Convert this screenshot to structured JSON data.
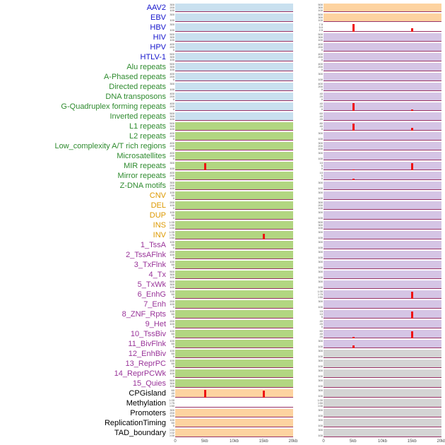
{
  "chart_data": {
    "type": "line",
    "layout": "multi-track-two-column-genomic-feature-plot",
    "x_axis": {
      "ticks": [
        "0",
        "5kb",
        "10kb",
        "15kb",
        "20kb"
      ],
      "range_kb": [
        0,
        20
      ]
    },
    "label_colors": {
      "virus": "#1414cc",
      "repeats": "#2e8b2e",
      "sv": "#dd9900",
      "chromhmm": "#993399",
      "other": "#000000"
    },
    "panel_colors": {
      "blue": "#c9e0ef",
      "green": "#b2d681",
      "orange": "#fdd3a0",
      "purple": "#d5c5e5",
      "gray": "#d4d4d4",
      "white": "#ffffff"
    },
    "baseline_color": "#993366",
    "spike_color": "#ee1111",
    "axis_text_color": "#4d4d4d",
    "rows": [
      {
        "label": "AAV2",
        "group": "virus",
        "left": {
          "bg": "blue",
          "yticks": [
            "300",
            "200",
            "100"
          ],
          "spikes": []
        },
        "right": {
          "bg": "orange",
          "yticks": [
            "500",
            "300",
            "100"
          ],
          "spikes": []
        }
      },
      {
        "label": "EBV",
        "group": "virus",
        "left": {
          "bg": "blue",
          "yticks": [
            "300",
            "100"
          ],
          "spikes": []
        },
        "right": {
          "bg": "orange",
          "yticks": [
            "500",
            "300",
            "100"
          ],
          "spikes": []
        }
      },
      {
        "label": "HBV",
        "group": "virus",
        "left": {
          "bg": "blue",
          "yticks": [
            "300",
            "100"
          ],
          "spikes": []
        },
        "right": {
          "bg": "white",
          "yticks": [
            "7.5",
            "5.0",
            "2.5",
            "0.0"
          ],
          "spikes": [
            {
              "x_kb": 5,
              "h": 0.95
            },
            {
              "x_kb": 15,
              "h": 0.4
            }
          ]
        }
      },
      {
        "label": "HIV",
        "group": "virus",
        "left": {
          "bg": "blue",
          "yticks": [
            "500",
            "300",
            "100"
          ],
          "spikes": []
        },
        "right": {
          "bg": "purple",
          "yticks": [
            "500",
            "300",
            "100"
          ],
          "spikes": []
        }
      },
      {
        "label": "HPV",
        "group": "virus",
        "left": {
          "bg": "blue",
          "yticks": [
            "400",
            "200",
            "0"
          ],
          "spikes": []
        },
        "right": {
          "bg": "purple",
          "yticks": [
            "400",
            "200",
            "0"
          ],
          "spikes": []
        }
      },
      {
        "label": "HTLV-1",
        "group": "virus",
        "left": {
          "bg": "blue",
          "yticks": [
            "500",
            "300",
            "100"
          ],
          "spikes": []
        },
        "right": {
          "bg": "purple",
          "yticks": [
            "400",
            "200",
            "0"
          ],
          "spikes": []
        }
      },
      {
        "label": "Alu repeats",
        "group": "repeats",
        "left": {
          "bg": "blue",
          "yticks": [
            "500",
            "300",
            "100"
          ],
          "spikes": []
        },
        "right": {
          "bg": "purple",
          "yticks": [
            "400",
            "200",
            "0"
          ],
          "spikes": []
        }
      },
      {
        "label": "A-Phased repeats",
        "group": "repeats",
        "left": {
          "bg": "blue",
          "yticks": [
            "400",
            "200",
            "0"
          ],
          "spikes": []
        },
        "right": {
          "bg": "purple",
          "yticks": [
            "300",
            "100"
          ],
          "spikes": []
        }
      },
      {
        "label": "Directed repeats",
        "group": "repeats",
        "left": {
          "bg": "blue",
          "yticks": [
            "300",
            "100"
          ],
          "spikes": []
        },
        "right": {
          "bg": "purple",
          "yticks": [
            "400",
            "200",
            "0"
          ],
          "spikes": []
        }
      },
      {
        "label": "DNA transposons",
        "group": "repeats",
        "left": {
          "bg": "blue",
          "yticks": [
            "400",
            "200",
            "0"
          ],
          "spikes": []
        },
        "right": {
          "bg": "purple",
          "yticks": [
            "40",
            "20",
            "0"
          ],
          "spikes": []
        }
      },
      {
        "label": "G-Quadruplex forming repeats",
        "group": "repeats",
        "left": {
          "bg": "blue",
          "yticks": [
            "400",
            "200",
            "0"
          ],
          "spikes": []
        },
        "right": {
          "bg": "purple",
          "yticks": [
            "40",
            "20",
            "0"
          ],
          "spikes": [
            {
              "x_kb": 5,
              "h": 0.9
            },
            {
              "x_kb": 15,
              "h": 0.15
            }
          ]
        }
      },
      {
        "label": "Inverted repeats",
        "group": "repeats",
        "left": {
          "bg": "blue",
          "yticks": [
            "500",
            "300",
            "100"
          ],
          "spikes": []
        },
        "right": {
          "bg": "purple",
          "yticks": [
            "60",
            "40",
            "20"
          ],
          "spikes": []
        }
      },
      {
        "label": "L1 repeats",
        "group": "repeats",
        "left": {
          "bg": "green",
          "yticks": [
            "500",
            "300",
            "100"
          ],
          "spikes": []
        },
        "right": {
          "bg": "purple",
          "yticks": [
            "80",
            "40",
            "0"
          ],
          "spikes": [
            {
              "x_kb": 5,
              "h": 0.85
            },
            {
              "x_kb": 15,
              "h": 0.35
            }
          ]
        }
      },
      {
        "label": "L2 repeats",
        "group": "repeats",
        "left": {
          "bg": "green",
          "yticks": [
            "400",
            "200",
            "0"
          ],
          "spikes": []
        },
        "right": {
          "bg": "purple",
          "yticks": [
            "300",
            "100"
          ],
          "spikes": []
        }
      },
      {
        "label": "Low_complexity A/T rich regions",
        "group": "repeats",
        "left": {
          "bg": "green",
          "yticks": [
            "400",
            "200",
            "0"
          ],
          "spikes": []
        },
        "right": {
          "bg": "purple",
          "yticks": [
            "300",
            "200",
            "100"
          ],
          "spikes": []
        }
      },
      {
        "label": "Microsatellites",
        "group": "repeats",
        "left": {
          "bg": "green",
          "yticks": [
            "400",
            "200",
            "0"
          ],
          "spikes": []
        },
        "right": {
          "bg": "purple",
          "yticks": [
            "300",
            "100"
          ],
          "spikes": []
        }
      },
      {
        "label": "MIR repeats",
        "group": "repeats",
        "left": {
          "bg": "green",
          "yticks": [
            "300",
            "100"
          ],
          "spikes": [
            {
              "x_kb": 5,
              "h": 0.85
            }
          ]
        },
        "right": {
          "bg": "purple",
          "yticks": [
            "10",
            "5",
            "0"
          ],
          "spikes": [
            {
              "x_kb": 15,
              "h": 0.85
            },
            {
              "x_kb": 5,
              "h": 0.12
            }
          ]
        }
      },
      {
        "label": "Mirror repeats",
        "group": "repeats",
        "left": {
          "bg": "green",
          "yticks": [
            "400",
            "200",
            "0"
          ],
          "spikes": []
        },
        "right": {
          "bg": "purple",
          "yticks": [
            "10",
            "5",
            "0"
          ],
          "spikes": [
            {
              "x_kb": 5,
              "h": 0.15
            }
          ]
        }
      },
      {
        "label": "Z-DNA motifs",
        "group": "repeats",
        "left": {
          "bg": "green",
          "yticks": [
            "300",
            "200",
            "100"
          ],
          "spikes": []
        },
        "right": {
          "bg": "purple",
          "yticks": [
            "300",
            "100"
          ],
          "spikes": []
        }
      },
      {
        "label": "CNV",
        "group": "sv",
        "left": {
          "bg": "green",
          "yticks": [
            "100",
            "50",
            "0"
          ],
          "spikes": []
        },
        "right": {
          "bg": "purple",
          "yticks": [
            "300",
            "100"
          ],
          "spikes": []
        }
      },
      {
        "label": "DEL",
        "group": "sv",
        "left": {
          "bg": "green",
          "yticks": [
            "200",
            "100",
            "0"
          ],
          "spikes": []
        },
        "right": {
          "bg": "purple",
          "yticks": [
            "300",
            "200",
            "100"
          ],
          "spikes": []
        }
      },
      {
        "label": "DUP",
        "group": "sv",
        "left": {
          "bg": "green",
          "yticks": [
            "100",
            "50",
            "0"
          ],
          "spikes": []
        },
        "right": {
          "bg": "purple",
          "yticks": [
            "300",
            "100"
          ],
          "spikes": []
        }
      },
      {
        "label": "INS",
        "group": "sv",
        "left": {
          "bg": "green",
          "yticks": [
            "1.00",
            "0.50",
            "0.00"
          ],
          "spikes": []
        },
        "right": {
          "bg": "purple",
          "yticks": [
            "500",
            "300",
            "100"
          ],
          "spikes": []
        }
      },
      {
        "label": "INV",
        "group": "sv",
        "left": {
          "bg": "green",
          "yticks": [
            "1.00",
            "0.75",
            "0.50",
            "0.25",
            "0.00"
          ],
          "spikes": [
            {
              "x_kb": 15,
              "h": 0.7
            }
          ]
        },
        "right": {
          "bg": "purple",
          "yticks": [
            "300",
            "100"
          ],
          "spikes": []
        }
      },
      {
        "label": "1_TssA",
        "group": "chromhmm",
        "left": {
          "bg": "green",
          "yticks": [
            "100",
            "50",
            "0"
          ],
          "spikes": []
        },
        "right": {
          "bg": "purple",
          "yticks": [
            "300",
            "100"
          ],
          "spikes": []
        }
      },
      {
        "label": "2_TssAFlnk",
        "group": "chromhmm",
        "left": {
          "bg": "green",
          "yticks": [
            "200",
            "100",
            "0"
          ],
          "spikes": []
        },
        "right": {
          "bg": "purple",
          "yticks": [
            "300",
            "100"
          ],
          "spikes": []
        }
      },
      {
        "label": "3_TxFlnk",
        "group": "chromhmm",
        "left": {
          "bg": "green",
          "yticks": [
            "100",
            "50",
            "0"
          ],
          "spikes": []
        },
        "right": {
          "bg": "purple",
          "yticks": [
            "300",
            "100"
          ],
          "spikes": []
        }
      },
      {
        "label": "4_Tx",
        "group": "chromhmm",
        "left": {
          "bg": "green",
          "yticks": [
            "500",
            "300",
            "100"
          ],
          "spikes": []
        },
        "right": {
          "bg": "purple",
          "yticks": [
            "300",
            "100"
          ],
          "spikes": []
        }
      },
      {
        "label": "5_TxWk",
        "group": "chromhmm",
        "left": {
          "bg": "green",
          "yticks": [
            "500",
            "300",
            "100"
          ],
          "spikes": []
        },
        "right": {
          "bg": "purple",
          "yticks": [
            "300",
            "100"
          ],
          "spikes": []
        }
      },
      {
        "label": "6_EnhG",
        "group": "chromhmm",
        "left": {
          "bg": "green",
          "yticks": [
            "100",
            "50",
            "0"
          ],
          "spikes": []
        },
        "right": {
          "bg": "purple",
          "yticks": [
            "1.00",
            "0.75",
            "0.50",
            "0.25",
            "0.00"
          ],
          "spikes": [
            {
              "x_kb": 15,
              "h": 0.8
            }
          ]
        }
      },
      {
        "label": "7_Enh",
        "group": "chromhmm",
        "left": {
          "bg": "green",
          "yticks": [
            "200",
            "100",
            "0"
          ],
          "spikes": []
        },
        "right": {
          "bg": "purple",
          "yticks": [
            "300",
            "100"
          ],
          "spikes": []
        }
      },
      {
        "label": "8_ZNF_Rpts",
        "group": "chromhmm",
        "left": {
          "bg": "green",
          "yticks": [
            "100",
            "50",
            "0"
          ],
          "spikes": []
        },
        "right": {
          "bg": "purple",
          "yticks": [
            "15",
            "10",
            "5",
            "0"
          ],
          "spikes": [
            {
              "x_kb": 15,
              "h": 0.85
            }
          ]
        }
      },
      {
        "label": "9_Het",
        "group": "chromhmm",
        "left": {
          "bg": "green",
          "yticks": [
            "200",
            "100",
            "0"
          ],
          "spikes": []
        },
        "right": {
          "bg": "purple",
          "yticks": [
            "40",
            "20",
            "0"
          ],
          "spikes": []
        }
      },
      {
        "label": "10_TssBiv",
        "group": "chromhmm",
        "left": {
          "bg": "green",
          "yticks": [
            "100",
            "50",
            "0"
          ],
          "spikes": []
        },
        "right": {
          "bg": "purple",
          "yticks": [
            "60",
            "40",
            "20"
          ],
          "spikes": [
            {
              "x_kb": 15,
              "h": 0.8
            },
            {
              "x_kb": 5,
              "h": 0.15
            }
          ]
        }
      },
      {
        "label": "11_BivFlnk",
        "group": "chromhmm",
        "left": {
          "bg": "green",
          "yticks": [
            "100",
            "50",
            "0"
          ],
          "spikes": []
        },
        "right": {
          "bg": "purple",
          "yticks": [
            "300",
            "100"
          ],
          "spikes": [
            {
              "x_kb": 5,
              "h": 0.3
            }
          ]
        }
      },
      {
        "label": "12_EnhBiv",
        "group": "chromhmm",
        "left": {
          "bg": "green",
          "yticks": [
            "100",
            "50",
            "0"
          ],
          "spikes": []
        },
        "right": {
          "bg": "gray",
          "yticks": [
            "300",
            "100"
          ],
          "spikes": []
        }
      },
      {
        "label": "13_ReprPC",
        "group": "chromhmm",
        "left": {
          "bg": "green",
          "yticks": [
            "100",
            "50",
            "0"
          ],
          "spikes": []
        },
        "right": {
          "bg": "gray",
          "yticks": [
            "300",
            "100"
          ],
          "spikes": []
        }
      },
      {
        "label": "14_ReprPCWk",
        "group": "chromhmm",
        "left": {
          "bg": "green",
          "yticks": [
            "200",
            "100",
            "0"
          ],
          "spikes": []
        },
        "right": {
          "bg": "gray",
          "yticks": [
            "300",
            "100"
          ],
          "spikes": []
        }
      },
      {
        "label": "15_Quies",
        "group": "chromhmm",
        "left": {
          "bg": "green",
          "yticks": [
            "500",
            "300",
            "100"
          ],
          "spikes": []
        },
        "right": {
          "bg": "gray",
          "yticks": [
            "300",
            "100"
          ],
          "spikes": []
        }
      },
      {
        "label": "CPGisland",
        "group": "other",
        "left": {
          "bg": "orange",
          "yticks": [
            "60",
            "40",
            "20"
          ],
          "spikes": [
            {
              "x_kb": 5,
              "h": 0.9
            },
            {
              "x_kb": 15,
              "h": 0.85
            }
          ]
        },
        "right": {
          "bg": "gray",
          "yticks": [
            "300",
            "100"
          ],
          "spikes": []
        }
      },
      {
        "label": "Methylation",
        "group": "other",
        "left": {
          "bg": "white",
          "yticks": [
            "1.00",
            "0.75",
            "0.50"
          ],
          "spikes": []
        },
        "right": {
          "bg": "gray",
          "yticks": [
            "1.00",
            "0.50",
            "0.00"
          ],
          "spikes": []
        }
      },
      {
        "label": "Promoters",
        "group": "other",
        "left": {
          "bg": "orange",
          "yticks": [
            "300",
            "200",
            "100"
          ],
          "spikes": []
        },
        "right": {
          "bg": "gray",
          "yticks": [
            "300",
            "100"
          ],
          "spikes": []
        }
      },
      {
        "label": "ReplicationTiming",
        "group": "other",
        "left": {
          "bg": "orange",
          "yticks": [
            "100",
            "50",
            "0"
          ],
          "spikes": []
        },
        "right": {
          "bg": "gray",
          "yticks": [
            "300",
            "100"
          ],
          "spikes": []
        }
      },
      {
        "label": "TAD_boundary",
        "group": "other",
        "left": {
          "bg": "orange",
          "yticks": [
            "0.04",
            "0.02",
            "0.00"
          ],
          "spikes": []
        },
        "right": {
          "bg": "gray",
          "yticks": [
            "300",
            "100"
          ],
          "spikes": []
        }
      }
    ]
  }
}
